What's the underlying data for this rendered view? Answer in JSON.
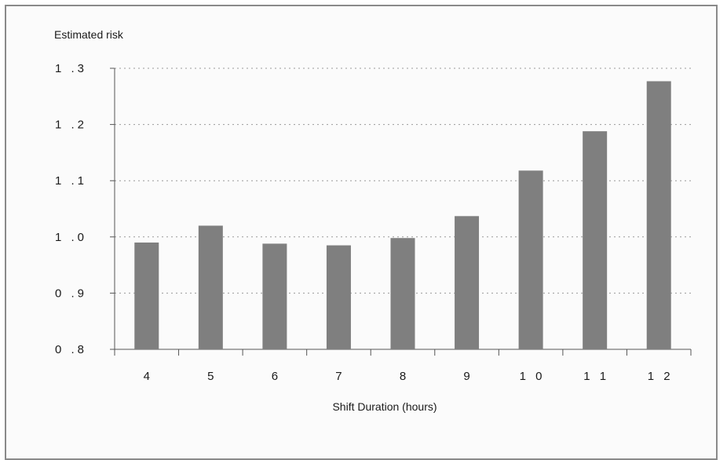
{
  "chart_data": {
    "type": "bar",
    "title": "",
    "ylabel": "Estimated risk",
    "xlabel": "Shift Duration (hours)",
    "categories": [
      "4",
      "5",
      "6",
      "7",
      "8",
      "9",
      "1 0",
      "1 1",
      "1 2"
    ],
    "values": [
      0.99,
      1.02,
      0.988,
      0.985,
      0.998,
      1.037,
      1.118,
      1.188,
      1.277
    ],
    "ylim": [
      0.8,
      1.3
    ],
    "yticks": [
      "0 .8",
      "0 .9",
      "1 .0",
      "1 .1",
      "1 .2",
      "1 .3"
    ],
    "ytick_values": [
      0.8,
      0.9,
      1.0,
      1.1,
      1.2,
      1.3
    ],
    "grid": "horizontal dotted",
    "bar_color": "#7f7f7f"
  }
}
